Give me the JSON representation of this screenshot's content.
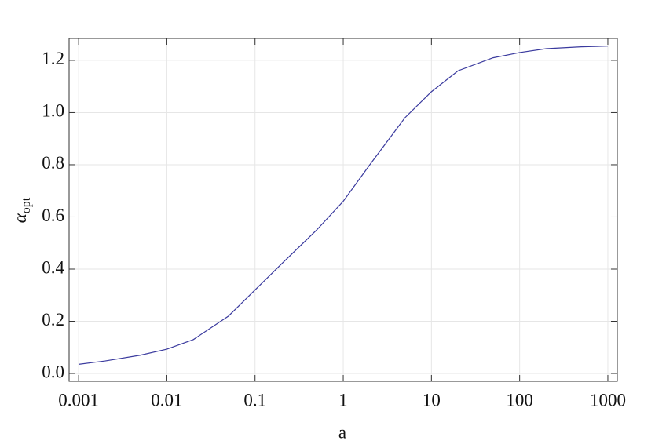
{
  "chart_data": {
    "type": "line",
    "x_label": "a",
    "y_label": "α",
    "y_label_subscript": "opt",
    "x_scale": "log",
    "grid": true,
    "xlim": [
      0.00078,
      1280
    ],
    "xticks": [
      0.001,
      0.01,
      0.1,
      1,
      10,
      100,
      1000
    ],
    "ylim": [
      -0.03,
      1.284
    ],
    "yticks": [
      {
        "value": 0,
        "label": "0.0"
      },
      0.2,
      0.4,
      0.6,
      0.8,
      {
        "value": 1,
        "label": "1.0"
      },
      1.2
    ],
    "series": [
      {
        "color": "#3a3a9e",
        "x": [
          0.001,
          0.002,
          0.005,
          0.01,
          0.02,
          0.05,
          0.1,
          0.2,
          0.5,
          1,
          2,
          5,
          10,
          20,
          50,
          100,
          200,
          500,
          1000
        ],
        "values": [
          0.035,
          0.048,
          0.07,
          0.093,
          0.13,
          0.22,
          0.32,
          0.42,
          0.55,
          0.66,
          0.8,
          0.98,
          1.08,
          1.16,
          1.21,
          1.23,
          1.245,
          1.252,
          1.255
        ]
      }
    ]
  }
}
